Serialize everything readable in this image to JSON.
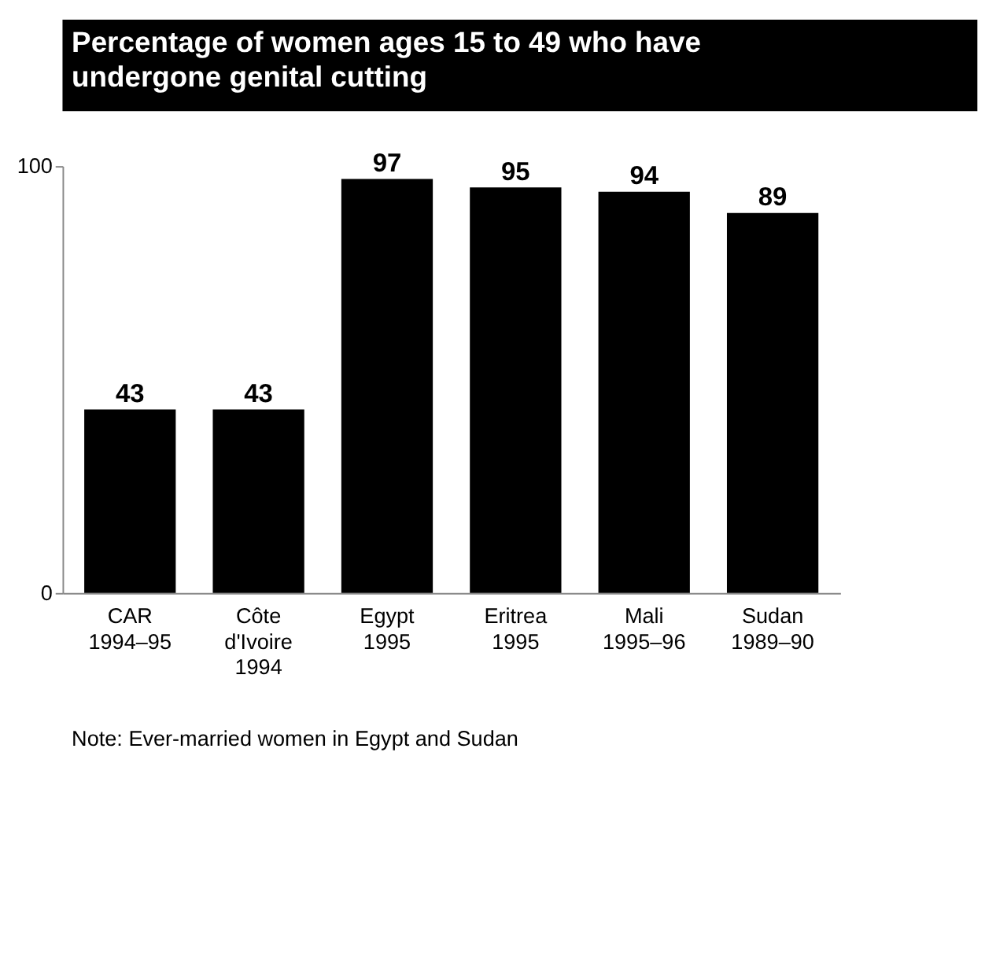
{
  "chart_data": {
    "type": "bar",
    "title": "Percentage of women ages 15 to 49 who have undergone genital cutting",
    "categories": [
      "CAR\n1994–95",
      "Côte\nd'Ivoire\n1994",
      "Egypt\n1995",
      "Eritrea\n1995",
      "Mali\n1995–96",
      "Sudan\n1989–90"
    ],
    "values": [
      43,
      43,
      97,
      95,
      94,
      89
    ],
    "color": "#000000",
    "ylim": [
      0,
      100
    ],
    "yticks": [
      0,
      100
    ],
    "grid": false,
    "data_labels": true,
    "annotations": [
      "Note: Ever-married women in Egypt and Sudan"
    ]
  }
}
